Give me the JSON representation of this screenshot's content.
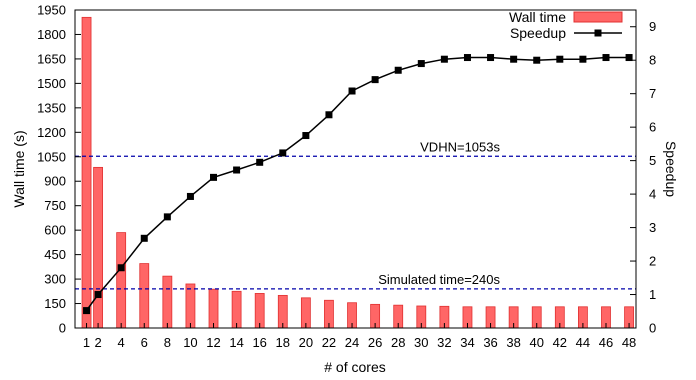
{
  "chart_data": {
    "type": "bar+line",
    "xlabel": "# of cores",
    "ylabel_left": "Wall time (s)",
    "ylabel_right": "Speedup",
    "ylim_left": [
      0,
      1950
    ],
    "ylim_right": [
      0,
      9.5
    ],
    "yticks_left": [
      0,
      150,
      300,
      450,
      600,
      750,
      900,
      1050,
      1200,
      1350,
      1500,
      1650,
      1800,
      1950
    ],
    "yticks_right": [
      0,
      1,
      2,
      3,
      4,
      5,
      6,
      7,
      8,
      9
    ],
    "x": [
      1,
      2,
      4,
      6,
      8,
      10,
      12,
      14,
      16,
      18,
      20,
      22,
      24,
      26,
      28,
      30,
      32,
      34,
      36,
      38,
      40,
      42,
      44,
      46,
      48
    ],
    "grid": false,
    "legend_position": "top-right",
    "series": [
      {
        "name": "Wall time",
        "kind": "bar",
        "axis": "left",
        "color": "#ff6666",
        "edge_color": "#e03030",
        "values": [
          1905,
          985,
          585,
          395,
          318,
          270,
          238,
          225,
          212,
          200,
          185,
          170,
          155,
          145,
          140,
          135,
          133,
          130,
          130,
          130,
          130,
          130,
          130,
          130,
          130
        ]
      },
      {
        "name": "Speedup",
        "kind": "line",
        "axis": "right",
        "color": "#000000",
        "marker": "square",
        "values": [
          0.52,
          1.0,
          1.8,
          2.68,
          3.32,
          3.93,
          4.5,
          4.72,
          4.95,
          5.23,
          5.75,
          6.37,
          7.08,
          7.42,
          7.7,
          7.9,
          8.03,
          8.08,
          8.08,
          8.03,
          8.0,
          8.03,
          8.03,
          8.08,
          8.08
        ]
      }
    ],
    "reference_lines": [
      {
        "label": "VDHN=1053s",
        "value": 1053,
        "axis": "left",
        "color": "#0000aa"
      },
      {
        "label": "Simulated time=240s",
        "value": 240,
        "axis": "left",
        "color": "#0000aa"
      }
    ]
  }
}
